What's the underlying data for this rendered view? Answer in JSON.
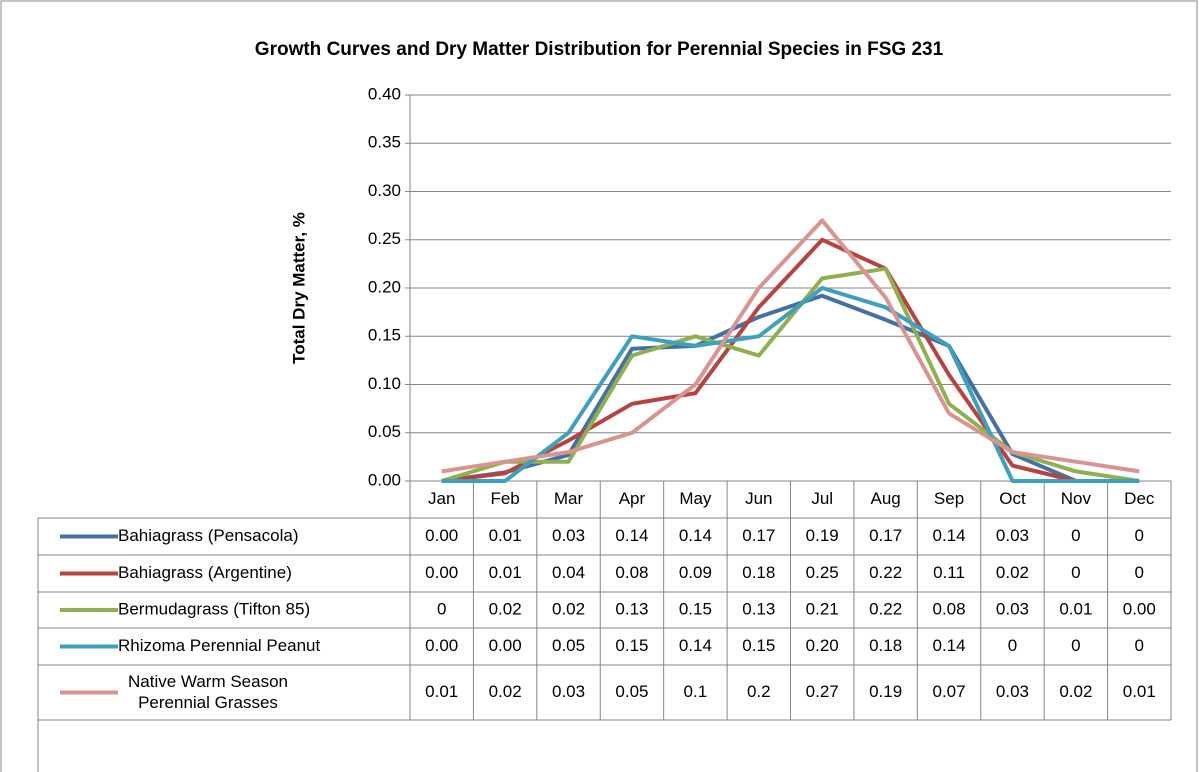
{
  "chart_data": {
    "type": "line",
    "title": "Growth Curves and Dry Matter Distribution for Perennial Species in FSG 231",
    "y_axis_label": "Total Dry Matter, %",
    "categories": [
      "Jan",
      "Feb",
      "Mar",
      "Apr",
      "May",
      "Jun",
      "Jul",
      "Aug",
      "Sep",
      "Oct",
      "Nov",
      "Dec"
    ],
    "ylim": [
      0,
      0.4
    ],
    "yticks": [
      {
        "value": 0,
        "label": "0.00"
      },
      {
        "value": 0.05,
        "label": "0.05"
      },
      {
        "value": 0.1,
        "label": "0.10"
      },
      {
        "value": 0.15,
        "label": "0.15"
      },
      {
        "value": 0.2,
        "label": "0.20"
      },
      {
        "value": 0.25,
        "label": "0.25"
      },
      {
        "value": 0.3,
        "label": "0.30"
      },
      {
        "value": 0.35,
        "label": "0.35"
      },
      {
        "value": 0.4,
        "label": "0.40"
      }
    ],
    "grid": true,
    "series": [
      {
        "name": "Bahiagrass (Pensacola)",
        "color": "#4470a6",
        "values": [
          0,
          0.009,
          0.027,
          0.137,
          0.14,
          0.17,
          0.192,
          0.167,
          0.14,
          0.028,
          0,
          0
        ],
        "value_labels": [
          "0.00",
          "0.01",
          "0.03",
          "0.14",
          "0.14",
          "0.17",
          "0.19",
          "0.17",
          "0.14",
          "0.03",
          "0",
          "0"
        ]
      },
      {
        "name": "Bahiagrass (Argentine)",
        "color": "#b8423f",
        "values": [
          0,
          0.008,
          0.042,
          0.08,
          0.091,
          0.18,
          0.25,
          0.22,
          0.11,
          0.016,
          0,
          0
        ],
        "value_labels": [
          "0.00",
          "0.01",
          "0.04",
          "0.08",
          "0.09",
          "0.18",
          "0.25",
          "0.22",
          "0.11",
          "0.02",
          "0",
          "0"
        ]
      },
      {
        "name": "Bermudagrass (Tifton 85)",
        "color": "#8fb04f",
        "values": [
          0,
          0.02,
          0.02,
          0.13,
          0.15,
          0.13,
          0.21,
          0.22,
          0.08,
          0.03,
          0.01,
          0
        ],
        "value_labels": [
          "0",
          "0.02",
          "0.02",
          "0.13",
          "0.15",
          "0.13",
          "0.21",
          "0.22",
          "0.08",
          "0.03",
          "0.01",
          "0.00"
        ]
      },
      {
        "name": "Rhizoma Perennial Peanut",
        "color": "#3fa0bd",
        "values": [
          0,
          0,
          0.05,
          0.15,
          0.14,
          0.15,
          0.2,
          0.18,
          0.14,
          0,
          0,
          0
        ],
        "value_labels": [
          "0.00",
          "0.00",
          "0.05",
          "0.15",
          "0.14",
          "0.15",
          "0.20",
          "0.18",
          "0.14",
          "0",
          "0",
          "0"
        ]
      },
      {
        "name": "Native Warm Season Perennial Grasses",
        "color": "#d99391",
        "values": [
          0.01,
          0.02,
          0.03,
          0.05,
          0.1,
          0.2,
          0.27,
          0.19,
          0.07,
          0.03,
          0.02,
          0.01
        ],
        "value_labels": [
          "0.01",
          "0.02",
          "0.03",
          "0.05",
          "0.1",
          "0.2",
          "0.27",
          "0.19",
          "0.07",
          "0.03",
          "0.02",
          "0.01"
        ]
      }
    ]
  }
}
